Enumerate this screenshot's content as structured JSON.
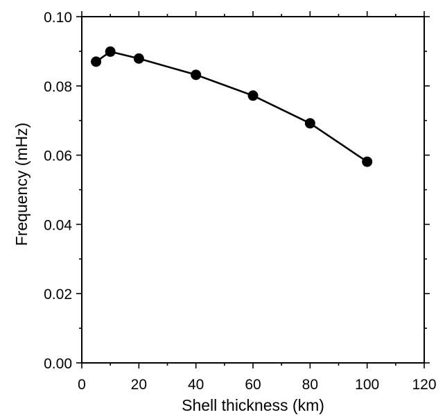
{
  "chart_data": {
    "type": "line",
    "title": "",
    "xlabel": "Shell thickness (km)",
    "ylabel": "Frequency (mHz)",
    "xlim": [
      0,
      120
    ],
    "ylim": [
      0,
      0.1
    ],
    "x_ticks": [
      "0",
      "20",
      "40",
      "60",
      "80",
      "100",
      "120"
    ],
    "y_ticks": [
      "0.00",
      "0.02",
      "0.04",
      "0.06",
      "0.08",
      "0.10"
    ],
    "grid": false,
    "legend": "none",
    "series": [
      {
        "x": [
          5,
          10,
          20,
          40,
          60,
          80,
          100
        ],
        "y": [
          0.087,
          0.0899,
          0.0879,
          0.0832,
          0.0772,
          0.0692,
          0.0581
        ],
        "marker": "circle",
        "color": "#000000"
      }
    ]
  }
}
